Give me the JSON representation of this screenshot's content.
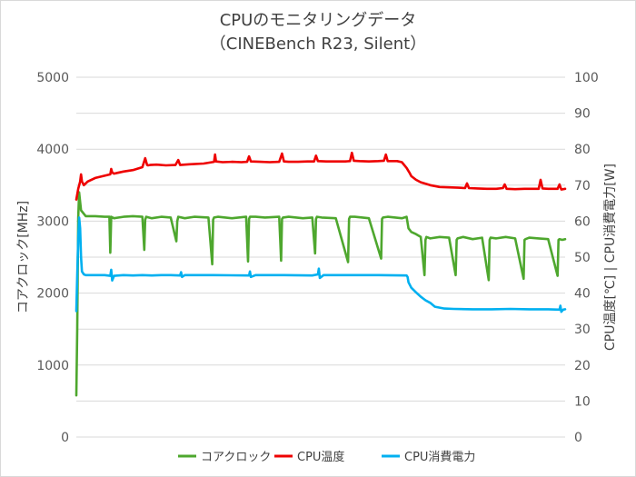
{
  "chart_data": {
    "type": "line",
    "title": "CPUのモニタリングデータ",
    "subtitle": "（CINEBench R23, Silent）",
    "ylabel_left": "コアクロック[MHz]",
    "ylabel_right": "CPU温度[℃] | CPU消費電力[W]",
    "ylim_left": [
      0,
      5000
    ],
    "ylim_right": [
      0,
      100
    ],
    "yticks_left": [
      "0",
      "1000",
      "2000",
      "3000",
      "4000",
      "5000"
    ],
    "yticks_right": [
      "0",
      "10",
      "20",
      "30",
      "40",
      "50",
      "60",
      "70",
      "80",
      "90",
      "100"
    ],
    "grid": "horizontal",
    "legend_position": "bottom",
    "series": [
      {
        "name": "コアクロック",
        "axis": "left",
        "color": "#4ea72e",
        "x": [
          0,
          1,
          2,
          3,
          5,
          10,
          20,
          30,
          35,
          36,
          37,
          40,
          50,
          60,
          70,
          72,
          73,
          74,
          80,
          90,
          100,
          106,
          107,
          108,
          115,
          125,
          140,
          144,
          145,
          146,
          150,
          165,
          180,
          182,
          183,
          184,
          190,
          200,
          215,
          217,
          218,
          219,
          225,
          240,
          250,
          253,
          254,
          255,
          260,
          275,
          288,
          289,
          290,
          295,
          310,
          323,
          324,
          325,
          330,
          345,
          350,
          352,
          355,
          360,
          365,
          369,
          370,
          371,
          375,
          385,
          395,
          402,
          403,
          404,
          410,
          420,
          430,
          437,
          438,
          439,
          445,
          455,
          465,
          474,
          475,
          476,
          480,
          490,
          500,
          510,
          511,
          512,
          515,
          518
        ],
        "values": [
          580,
          1500,
          3050,
          3400,
          3150,
          3070,
          3070,
          3060,
          3060,
          2560,
          3060,
          3040,
          3060,
          3070,
          3060,
          2600,
          3020,
          3060,
          3040,
          3060,
          3050,
          2720,
          3000,
          3060,
          3040,
          3060,
          3050,
          2400,
          3020,
          3050,
          3060,
          3040,
          3060,
          2440,
          3030,
          3060,
          3060,
          3050,
          3060,
          2450,
          3030,
          3050,
          3060,
          3040,
          3050,
          2550,
          3030,
          3060,
          3050,
          3040,
          2430,
          3030,
          3060,
          3060,
          3040,
          2480,
          3030,
          3050,
          3060,
          3040,
          3060,
          2900,
          2850,
          2820,
          2780,
          2250,
          2740,
          2780,
          2760,
          2780,
          2770,
          2250,
          2740,
          2760,
          2780,
          2750,
          2770,
          2180,
          2740,
          2770,
          2760,
          2780,
          2760,
          2200,
          2740,
          2750,
          2770,
          2760,
          2750,
          2240,
          2740,
          2750,
          2740,
          2750
        ]
      },
      {
        "name": "CPU温度",
        "axis": "right",
        "color": "#ee0000",
        "x": [
          0,
          2,
          4,
          5,
          6,
          8,
          12,
          20,
          28,
          36,
          37,
          38,
          40,
          50,
          60,
          70,
          73,
          75,
          76,
          78,
          85,
          95,
          105,
          108,
          110,
          120,
          135,
          146,
          147,
          148,
          155,
          165,
          175,
          181,
          183,
          185,
          195,
          205,
          215,
          218,
          220,
          225,
          235,
          245,
          252,
          254,
          256,
          265,
          275,
          285,
          290,
          292,
          294,
          300,
          310,
          320,
          326,
          328,
          330,
          340,
          345,
          350,
          353,
          355,
          360,
          365,
          375,
          385,
          395,
          405,
          412,
          414,
          416,
          425,
          435,
          445,
          452,
          454,
          456,
          465,
          475,
          485,
          490,
          492,
          494,
          500,
          510,
          512,
          514,
          518
        ],
        "values": [
          66,
          69,
          71,
          73,
          71,
          70,
          71,
          72,
          72.5,
          73,
          74.5,
          73.5,
          73.2,
          73.8,
          74.2,
          75,
          77.5,
          75.6,
          75.5,
          75.6,
          75.7,
          75.5,
          75.6,
          77,
          75.6,
          75.8,
          76,
          76.5,
          78.5,
          76.6,
          76.4,
          76.5,
          76.4,
          76.5,
          78,
          76.6,
          76.5,
          76.4,
          76.5,
          78.8,
          76.6,
          76.5,
          76.5,
          76.6,
          76.6,
          78.2,
          76.7,
          76.6,
          76.6,
          76.6,
          76.7,
          79,
          76.8,
          76.7,
          76.6,
          76.7,
          76.8,
          78.5,
          76.7,
          76.7,
          76.4,
          74.8,
          73.5,
          72.5,
          71.5,
          70.8,
          70,
          69.5,
          69.4,
          69.3,
          69.2,
          70.5,
          69.2,
          69.1,
          69,
          69,
          69.2,
          70.2,
          69,
          68.9,
          69,
          69,
          69,
          71.5,
          69.1,
          69,
          69,
          70.2,
          68.8,
          69
        ]
      },
      {
        "name": "CPU消費電力",
        "axis": "right",
        "color": "#00b0f0",
        "x": [
          0,
          1,
          2,
          3,
          4,
          5,
          6,
          8,
          10,
          20,
          30,
          36,
          37,
          38,
          40,
          50,
          60,
          70,
          80,
          90,
          100,
          110,
          111,
          112,
          115,
          130,
          145,
          183,
          184,
          185,
          190,
          220,
          250,
          256,
          257,
          258,
          262,
          290,
          320,
          350,
          351,
          352,
          355,
          360,
          365,
          370,
          375,
          380,
          390,
          400,
          420,
          440,
          460,
          480,
          500,
          512,
          513,
          514,
          516,
          518
        ],
        "values": [
          35,
          45,
          55,
          61,
          58,
          50,
          46,
          45.2,
          45,
          45,
          45,
          44.8,
          46.5,
          43.5,
          44.8,
          45,
          44.9,
          45,
          44.9,
          45,
          45,
          44.9,
          45.8,
          44.5,
          45,
          45,
          45,
          44.9,
          46,
          44.5,
          45,
          45,
          44.9,
          45.2,
          46.8,
          44.2,
          45,
          45,
          45,
          44.9,
          44.5,
          43,
          41.5,
          40.2,
          39,
          38,
          37.3,
          36.2,
          35.7,
          35.6,
          35.5,
          35.5,
          35.6,
          35.5,
          35.5,
          35.4,
          36.5,
          34.8,
          35.4,
          35.5
        ]
      }
    ]
  }
}
